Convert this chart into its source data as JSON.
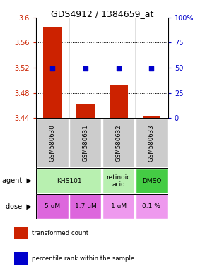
{
  "title": "GDS4912 / 1384659_at",
  "samples": [
    "GSM580630",
    "GSM580631",
    "GSM580632",
    "GSM580633"
  ],
  "bar_values": [
    3.585,
    3.463,
    3.493,
    3.443
  ],
  "bar_bottom": 3.44,
  "percentile_values": [
    49,
    49,
    49,
    49
  ],
  "ylim_left": [
    3.44,
    3.6
  ],
  "ylim_right": [
    0,
    100
  ],
  "yticks_left": [
    3.44,
    3.48,
    3.52,
    3.56,
    3.6
  ],
  "yticks_right": [
    0,
    25,
    50,
    75,
    100
  ],
  "ytick_labels_right": [
    "0",
    "25",
    "50",
    "75",
    "100%"
  ],
  "bar_color": "#cc2200",
  "dot_color": "#0000cc",
  "agent_groups": [
    [
      0,
      2,
      "KHS101",
      "#b8f0b0"
    ],
    [
      2,
      3,
      "retinoic\nacid",
      "#b8f0b0"
    ],
    [
      3,
      4,
      "DMSO",
      "#44cc44"
    ]
  ],
  "dose_labels": [
    "5 uM",
    "1.7 uM",
    "1 uM",
    "0.1 %"
  ],
  "dose_colors": [
    "#dd66dd",
    "#dd66dd",
    "#ee99ee",
    "#ee99ee"
  ],
  "sample_bg": "#cccccc",
  "legend_red": "transformed count",
  "legend_blue": "percentile rank within the sample"
}
